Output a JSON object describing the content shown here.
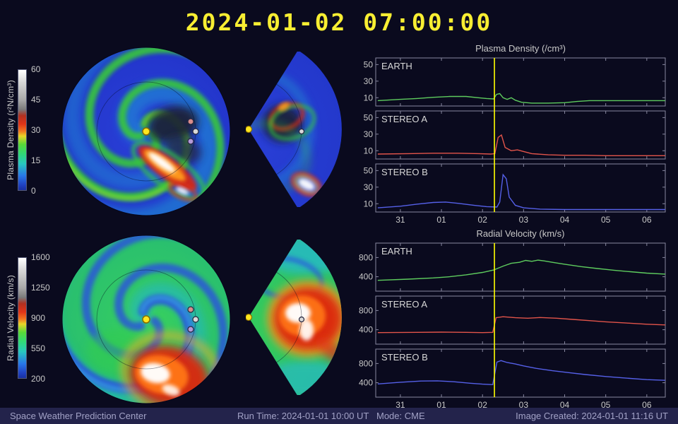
{
  "title": "2024-01-02 07:00:00",
  "colorbars": {
    "density": {
      "label": "Plasma Density (r²N/cm³)",
      "ticks": [
        0,
        15,
        30,
        45,
        60
      ]
    },
    "velocity": {
      "label": "Radial Velocity (km/s)",
      "ticks": [
        200,
        550,
        900,
        1250,
        1600
      ]
    }
  },
  "footer": {
    "left": "Space Weather Prediction Center",
    "center": "Run Time: 2024-01-01 10:00 UT   Mode: CME",
    "right": "Image Created: 2024-01-01 11:16 UT"
  },
  "chart_data": [
    {
      "type": "line",
      "title": "Plasma Density (/cm³)",
      "xlim": [
        30.4,
        37.45
      ],
      "x_ticks": [
        31,
        32,
        33,
        34,
        35,
        36,
        37
      ],
      "x_tick_labels": [
        "31",
        "01",
        "02",
        "03",
        "04",
        "05",
        "06"
      ],
      "ylim": [
        0,
        58
      ],
      "y_ticks": [
        10,
        30,
        50
      ],
      "grid": false,
      "now_line_x": 33.29,
      "now_line_color": "#ffff00",
      "panels": [
        {
          "label": "EARTH",
          "color": "#5ecc5e",
          "points": [
            [
              30.45,
              6.5
            ],
            [
              31.0,
              8
            ],
            [
              31.4,
              9
            ],
            [
              31.8,
              10.5
            ],
            [
              32.2,
              11.5
            ],
            [
              32.6,
              11.5
            ],
            [
              32.9,
              10
            ],
            [
              33.1,
              9
            ],
            [
              33.27,
              8.5
            ],
            [
              33.34,
              14
            ],
            [
              33.42,
              15
            ],
            [
              33.5,
              10
            ],
            [
              33.6,
              8
            ],
            [
              33.7,
              10
            ],
            [
              33.8,
              7
            ],
            [
              33.95,
              4.5
            ],
            [
              34.2,
              3.5
            ],
            [
              34.6,
              3.5
            ],
            [
              35.0,
              4
            ],
            [
              35.3,
              5.5
            ],
            [
              35.6,
              6.5
            ],
            [
              36.0,
              6.5
            ],
            [
              36.5,
              6.5
            ],
            [
              37.0,
              6.5
            ],
            [
              37.45,
              6.5
            ]
          ]
        },
        {
          "label": "STEREO A",
          "color": "#e2544a",
          "points": [
            [
              30.45,
              6
            ],
            [
              31.2,
              6.5
            ],
            [
              31.8,
              7
            ],
            [
              32.4,
              7
            ],
            [
              32.9,
              6.5
            ],
            [
              33.2,
              6
            ],
            [
              33.3,
              6.5
            ],
            [
              33.38,
              26
            ],
            [
              33.46,
              29
            ],
            [
              33.55,
              14
            ],
            [
              33.7,
              10
            ],
            [
              33.85,
              11
            ],
            [
              34.0,
              9
            ],
            [
              34.2,
              6.5
            ],
            [
              34.6,
              5
            ],
            [
              35.0,
              4.5
            ],
            [
              35.5,
              4.5
            ],
            [
              36.0,
              4
            ],
            [
              36.5,
              4
            ],
            [
              37.0,
              4
            ],
            [
              37.45,
              4
            ]
          ]
        },
        {
          "label": "STEREO B",
          "color": "#5560e8",
          "points": [
            [
              30.45,
              5
            ],
            [
              31.0,
              7
            ],
            [
              31.4,
              9.5
            ],
            [
              31.8,
              11.5
            ],
            [
              32.1,
              12
            ],
            [
              32.4,
              10.5
            ],
            [
              32.8,
              8
            ],
            [
              33.1,
              6.5
            ],
            [
              33.35,
              6
            ],
            [
              33.42,
              12
            ],
            [
              33.5,
              45
            ],
            [
              33.58,
              40
            ],
            [
              33.65,
              18
            ],
            [
              33.8,
              8
            ],
            [
              34.0,
              5
            ],
            [
              34.4,
              3.5
            ],
            [
              35.0,
              3
            ],
            [
              35.6,
              3
            ],
            [
              36.2,
              3
            ],
            [
              37.0,
              3
            ],
            [
              37.45,
              3
            ]
          ]
        }
      ]
    },
    {
      "type": "line",
      "title": "Radial Velocity (km/s)",
      "xlim": [
        30.4,
        37.45
      ],
      "x_ticks": [
        31,
        32,
        33,
        34,
        35,
        36,
        37
      ],
      "x_tick_labels": [
        "31",
        "01",
        "02",
        "03",
        "04",
        "05",
        "06"
      ],
      "ylim": [
        100,
        1100
      ],
      "y_ticks": [
        400,
        800
      ],
      "grid": false,
      "now_line_x": 33.29,
      "now_line_color": "#ffff00",
      "panels": [
        {
          "label": "EARTH",
          "color": "#5ecc5e",
          "points": [
            [
              30.45,
              325
            ],
            [
              31.2,
              350
            ],
            [
              31.8,
              375
            ],
            [
              32.2,
              400
            ],
            [
              32.6,
              440
            ],
            [
              33.0,
              490
            ],
            [
              33.27,
              540
            ],
            [
              33.5,
              620
            ],
            [
              33.7,
              680
            ],
            [
              33.9,
              700
            ],
            [
              34.05,
              740
            ],
            [
              34.2,
              720
            ],
            [
              34.35,
              745
            ],
            [
              34.5,
              730
            ],
            [
              34.7,
              700
            ],
            [
              35.0,
              660
            ],
            [
              35.4,
              610
            ],
            [
              35.8,
              570
            ],
            [
              36.2,
              535
            ],
            [
              36.6,
              505
            ],
            [
              37.0,
              475
            ],
            [
              37.45,
              455
            ]
          ]
        },
        {
          "label": "STEREO A",
          "color": "#e2544a",
          "points": [
            [
              30.45,
              340
            ],
            [
              31.4,
              345
            ],
            [
              32.0,
              350
            ],
            [
              32.6,
              345
            ],
            [
              33.0,
              340
            ],
            [
              33.25,
              345
            ],
            [
              33.33,
              650
            ],
            [
              33.5,
              670
            ],
            [
              33.8,
              650
            ],
            [
              34.1,
              640
            ],
            [
              34.4,
              655
            ],
            [
              34.8,
              640
            ],
            [
              35.2,
              615
            ],
            [
              35.6,
              590
            ],
            [
              36.0,
              565
            ],
            [
              36.5,
              540
            ],
            [
              37.0,
              515
            ],
            [
              37.45,
              500
            ]
          ]
        },
        {
          "label": "STEREO B",
          "color": "#5560e8",
          "points": [
            [
              30.45,
              375
            ],
            [
              31.0,
              410
            ],
            [
              31.5,
              435
            ],
            [
              31.9,
              440
            ],
            [
              32.3,
              420
            ],
            [
              32.7,
              390
            ],
            [
              33.0,
              370
            ],
            [
              33.25,
              360
            ],
            [
              33.35,
              830
            ],
            [
              33.45,
              860
            ],
            [
              33.6,
              820
            ],
            [
              33.8,
              790
            ],
            [
              34.0,
              750
            ],
            [
              34.3,
              700
            ],
            [
              34.7,
              650
            ],
            [
              35.1,
              610
            ],
            [
              35.5,
              570
            ],
            [
              36.0,
              530
            ],
            [
              36.5,
              495
            ],
            [
              37.0,
              465
            ],
            [
              37.45,
              450
            ]
          ]
        }
      ]
    }
  ]
}
